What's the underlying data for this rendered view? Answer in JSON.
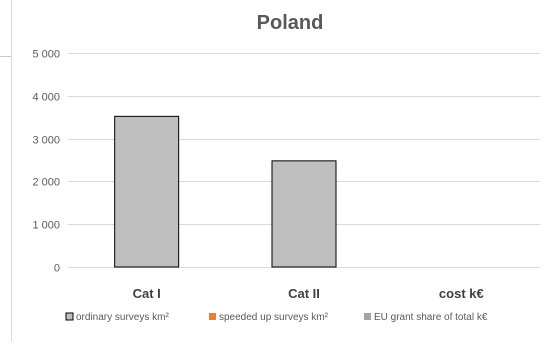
{
  "chart_data": {
    "type": "bar",
    "title": "Poland",
    "categories": [
      "Cat I",
      "Cat II",
      "cost  k€"
    ],
    "series": [
      {
        "name": "ordinary surveys km²",
        "values": [
          3520,
          2480,
          null
        ],
        "color": "#bfbfbf",
        "border": "#000000"
      },
      {
        "name": "speeded up surveys km²",
        "values": [
          null,
          null,
          null
        ],
        "color": "#ed7d31"
      },
      {
        "name": "EU grant share of total k€",
        "values": [
          null,
          null,
          null
        ],
        "color": "#a5a5a5"
      }
    ],
    "ylim": [
      0,
      5000
    ],
    "yticks": [
      0,
      1000,
      2000,
      3000,
      4000,
      5000
    ],
    "ytick_labels": [
      "0",
      "1 000",
      "2 000",
      "3 000",
      "4 000",
      "5 000"
    ],
    "grid": true,
    "legend_position": "bottom"
  }
}
